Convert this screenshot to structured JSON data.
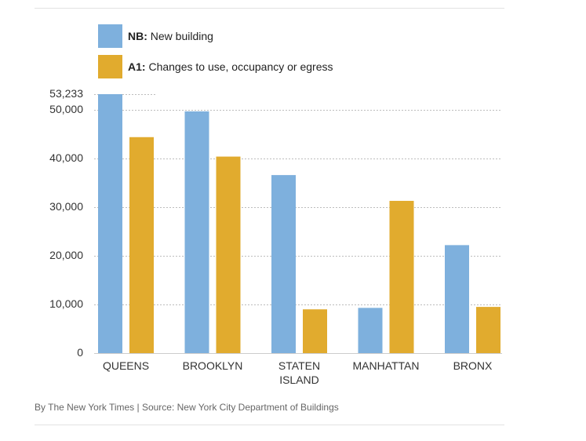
{
  "legend": {
    "items": [
      {
        "code": "NB:",
        "label": "New building",
        "color": "#7eb0dd"
      },
      {
        "code": "A1:",
        "label": "Changes to use, occupancy or egress",
        "color": "#e1ab2e"
      }
    ]
  },
  "credit": "By The New York Times | Source: New York City Department of Buildings",
  "chart_data": {
    "type": "bar",
    "categories": [
      [
        "QUEENS"
      ],
      [
        "BROOKLYN"
      ],
      [
        "STATEN",
        "ISLAND"
      ],
      [
        "MANHATTAN"
      ],
      [
        "BRONX"
      ]
    ],
    "series": [
      {
        "name": "NB: New building",
        "color": "#7eb0dd",
        "values": [
          53233,
          49700,
          36600,
          9300,
          22200
        ]
      },
      {
        "name": "A1: Changes to use, occupancy or egress",
        "color": "#e1ab2e",
        "values": [
          44400,
          40400,
          9000,
          31300,
          9500
        ]
      }
    ],
    "yticks": [
      0,
      10000,
      20000,
      30000,
      40000,
      50000
    ],
    "ytick_labels": [
      "0",
      "10,000",
      "20,000",
      "30,000",
      "40,000",
      "50,000"
    ],
    "max_label": "53,233",
    "ylim": [
      0,
      53233
    ],
    "grid": true,
    "legend_position": "top-left",
    "title": "",
    "xlabel": "",
    "ylabel": ""
  }
}
